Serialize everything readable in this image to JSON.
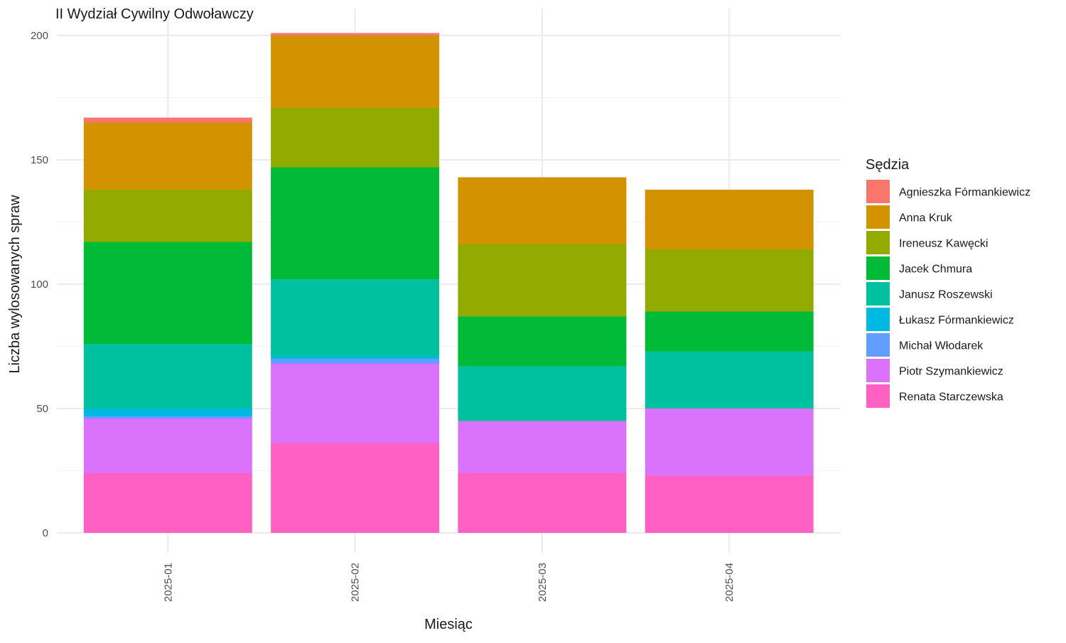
{
  "chart_data": {
    "type": "bar",
    "stacked": true,
    "title": "II Wydział Cywilny Odwoławczy",
    "xlabel": "Miesiąc",
    "ylabel": "Liczba wylosowanych spraw",
    "ylim": [
      0,
      200
    ],
    "yticks": [
      "0",
      "50",
      "100",
      "150",
      "200"
    ],
    "categories": [
      "2025-01",
      "2025-02",
      "2025-03",
      "2025-04"
    ],
    "grid": true,
    "legend": {
      "title": "Sędzia",
      "position": "right"
    },
    "series": [
      {
        "name": "Agnieszka Fórmankiewicz",
        "color": "#F8766D",
        "values": [
          2,
          1,
          0,
          0
        ]
      },
      {
        "name": "Anna Kruk",
        "color": "#D39200",
        "values": [
          27,
          29,
          27,
          24
        ]
      },
      {
        "name": "Ireneusz Kawęcki",
        "color": "#93AA00",
        "values": [
          21,
          24,
          29,
          25
        ]
      },
      {
        "name": "Jacek Chmura",
        "color": "#00BA38",
        "values": [
          41,
          45,
          20,
          16
        ]
      },
      {
        "name": "Janusz Roszewski",
        "color": "#00C19F",
        "values": [
          26,
          31,
          22,
          23
        ]
      },
      {
        "name": "Łukasz Fórmankiewicz",
        "color": "#00B9E3",
        "values": [
          3,
          1,
          0,
          0
        ]
      },
      {
        "name": "Michał Włodarek",
        "color": "#619CFF",
        "values": [
          1,
          2,
          0,
          0
        ]
      },
      {
        "name": "Piotr Szymankiewicz",
        "color": "#DB72FB",
        "values": [
          22,
          32,
          21,
          27
        ]
      },
      {
        "name": "Renata Starczewska",
        "color": "#FF61C3",
        "values": [
          24,
          36,
          24,
          23
        ]
      }
    ]
  }
}
